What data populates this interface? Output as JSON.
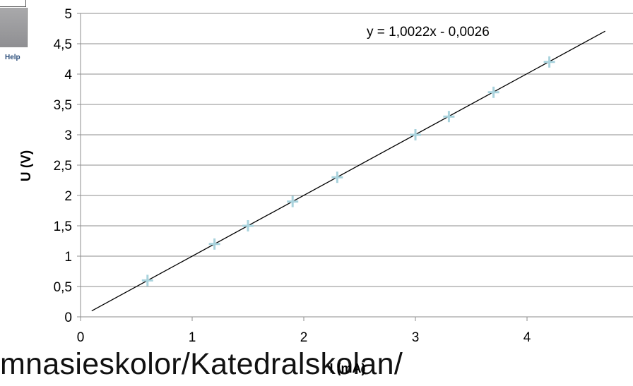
{
  "help_panel": {
    "label": "Help"
  },
  "bottom_text": "mnasieskolor/Katedralskolan/",
  "chart_data": {
    "type": "scatter",
    "xlabel": "I (mA)",
    "ylabel": "U (V)",
    "xlim": [
      0,
      5.25
    ],
    "ylim": [
      0,
      5
    ],
    "x_ticks": [
      "0",
      "1",
      "2",
      "3",
      "4"
    ],
    "y_ticks": [
      "0",
      "0,5",
      "1",
      "1,5",
      "2",
      "2,5",
      "3",
      "3,5",
      "4",
      "4,5",
      "5"
    ],
    "grid": true,
    "points": [
      {
        "x": 0.6,
        "y": 0.6
      },
      {
        "x": 1.2,
        "y": 1.2
      },
      {
        "x": 1.5,
        "y": 1.5
      },
      {
        "x": 1.9,
        "y": 1.9
      },
      {
        "x": 2.3,
        "y": 2.3
      },
      {
        "x": 3.0,
        "y": 3.0
      },
      {
        "x": 3.3,
        "y": 3.3
      },
      {
        "x": 3.7,
        "y": 3.7
      },
      {
        "x": 4.2,
        "y": 4.2
      }
    ],
    "trendline": {
      "slope": 1.0022,
      "intercept": -0.0026,
      "x_range": [
        0.1,
        4.7
      ],
      "label": "y = 1,0022x - 0,0026"
    },
    "colors": {
      "marker": "#a9d3dd",
      "line": "#000000",
      "grid": "#8c8c8c",
      "axis": "#8c8c8c"
    }
  }
}
